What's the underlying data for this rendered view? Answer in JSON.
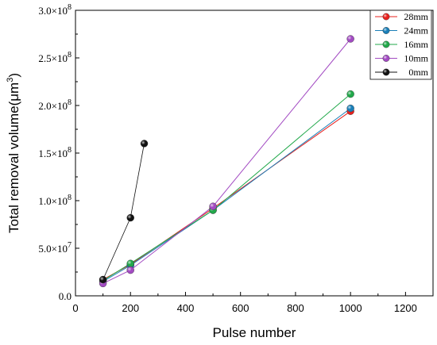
{
  "chart_data": {
    "type": "line",
    "xlabel": "Pulse number",
    "ylabel": "Total removal volume(μm",
    "ylabel_sup": "3",
    "ylabel_close": ")",
    "xlim": [
      0,
      1300
    ],
    "ylim": [
      0,
      300000000
    ],
    "x_ticks": [
      0,
      200,
      400,
      600,
      800,
      1000,
      1200
    ],
    "x_tick_labels": [
      "0",
      "200",
      "400",
      "600",
      "800",
      "1000",
      "1200"
    ],
    "y_ticks": [
      0,
      50000000,
      100000000,
      150000000,
      200000000,
      250000000,
      300000000
    ],
    "y_tick_labels": [
      {
        "mant": "0.0",
        "exp": ""
      },
      {
        "mant": "5.0×10",
        "exp": "7"
      },
      {
        "mant": "1.0×10",
        "exp": "8"
      },
      {
        "mant": "1.5×10",
        "exp": "8"
      },
      {
        "mant": "2.0×10",
        "exp": "8"
      },
      {
        "mant": "2.5×10",
        "exp": "8"
      },
      {
        "mant": "3.0×10",
        "exp": "8"
      }
    ],
    "grid": false,
    "legend_position": "top-right",
    "series": [
      {
        "name": "28mm",
        "color": "#e8201d",
        "x": [
          100,
          200,
          500,
          1000
        ],
        "y": [
          17000000,
          33000000,
          92000000,
          194000000
        ]
      },
      {
        "name": "24mm",
        "color": "#1a7fb8",
        "x": [
          100,
          200,
          500,
          1000
        ],
        "y": [
          15000000,
          32000000,
          90000000,
          197000000
        ]
      },
      {
        "name": "16mm",
        "color": "#21a84a",
        "x": [
          100,
          200,
          500,
          1000
        ],
        "y": [
          16000000,
          34000000,
          90000000,
          212000000
        ]
      },
      {
        "name": "10mm",
        "color": "#a24ac2",
        "x": [
          100,
          200,
          500,
          1000
        ],
        "y": [
          13000000,
          27000000,
          94000000,
          270000000
        ]
      },
      {
        "name": "0mm",
        "color": "#111111",
        "x": [
          100,
          200,
          250
        ],
        "y": [
          17000000,
          82000000,
          160000000
        ]
      }
    ]
  }
}
